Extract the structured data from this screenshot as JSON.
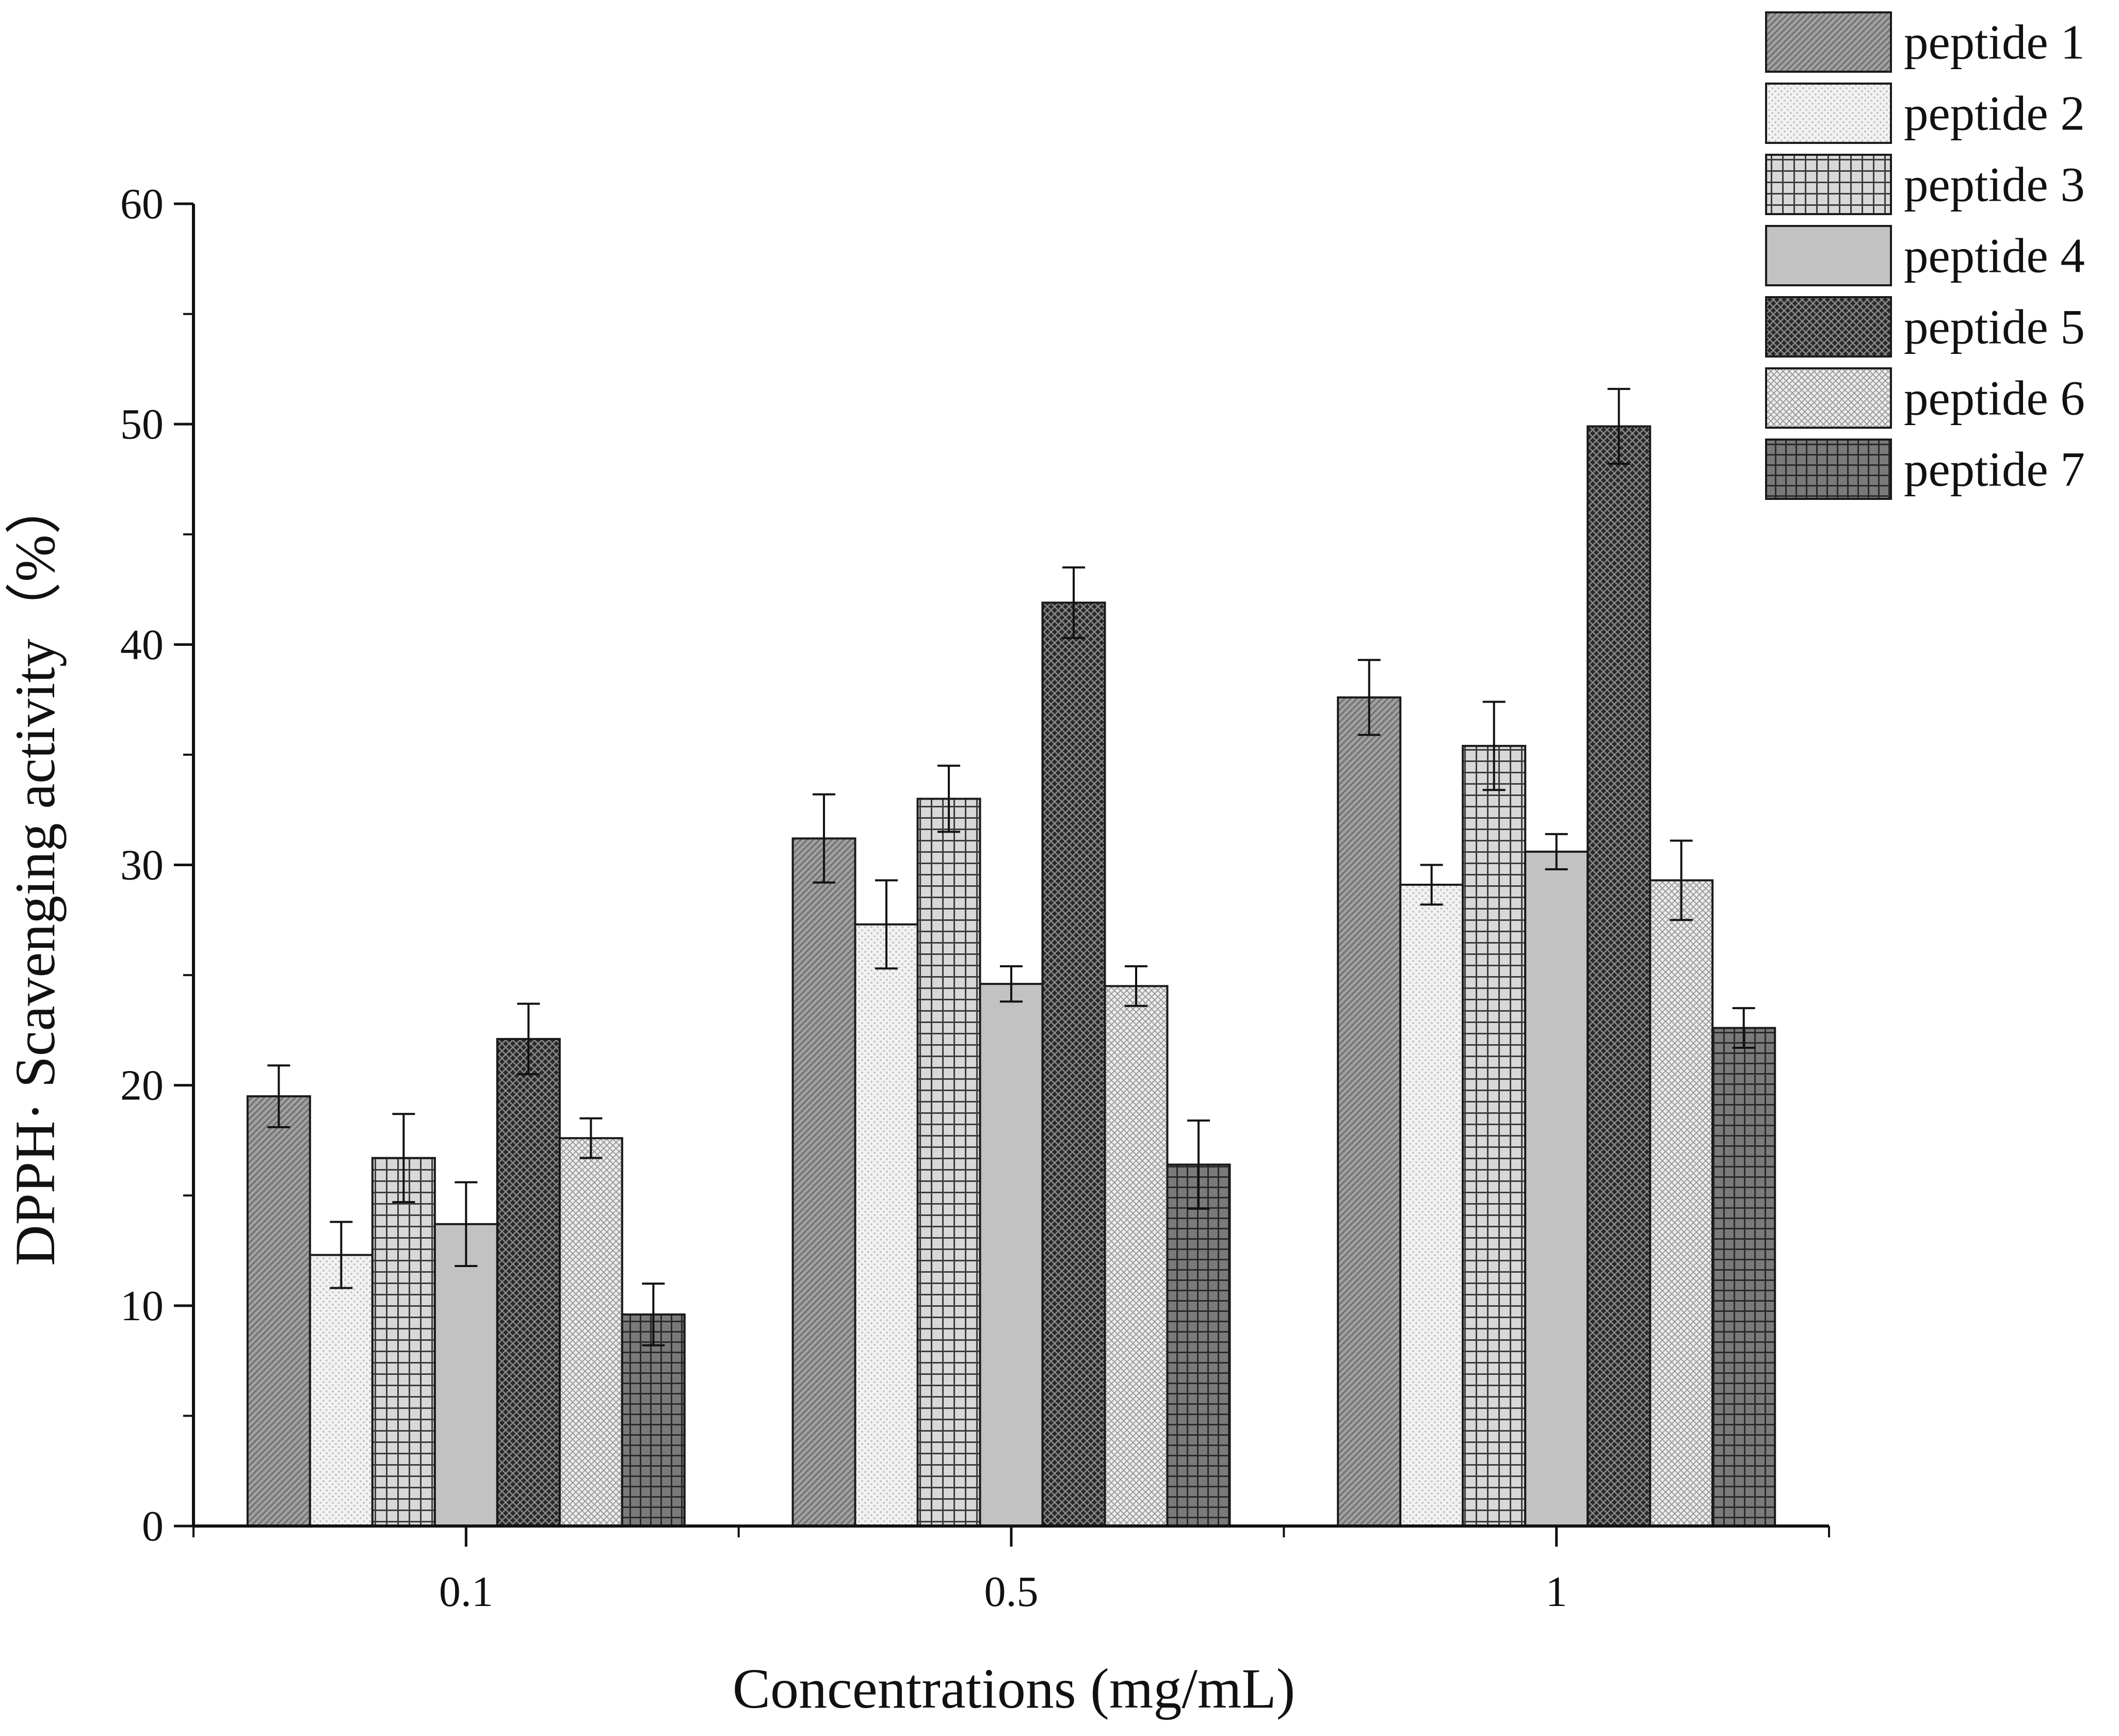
{
  "chart_data": {
    "type": "bar",
    "xlabel": "Concentrations (mg/mL)",
    "ylabel": "DPPH· Scavenging activity（%）",
    "ylim": [
      0,
      60
    ],
    "yticks": [
      0,
      10,
      20,
      30,
      40,
      50,
      60
    ],
    "categories": [
      "0.1",
      "0.5",
      "1"
    ],
    "grid": false,
    "legend_position": "top-right",
    "series": [
      {
        "name": "peptide 1",
        "values": [
          19.5,
          31.2,
          37.6
        ],
        "errors": [
          1.4,
          2.0,
          1.7
        ],
        "pattern": "fine-diagonal",
        "fill": "#9e9e9e"
      },
      {
        "name": "peptide 2",
        "values": [
          12.3,
          27.3,
          29.1
        ],
        "errors": [
          1.5,
          2.0,
          0.9
        ],
        "pattern": "light-dots",
        "fill": "#e8e8e8"
      },
      {
        "name": "peptide 3",
        "values": [
          16.7,
          33.0,
          35.4
        ],
        "errors": [
          2.0,
          1.5,
          2.0
        ],
        "pattern": "grid",
        "fill": "#d0d0d0"
      },
      {
        "name": "peptide 4",
        "values": [
          13.7,
          24.6,
          30.6
        ],
        "errors": [
          1.9,
          0.8,
          0.8
        ],
        "pattern": "solid",
        "fill": "#c2c2c2"
      },
      {
        "name": "peptide 5",
        "values": [
          22.1,
          41.9,
          49.9
        ],
        "errors": [
          1.6,
          1.6,
          1.7
        ],
        "pattern": "dark-crosshatch",
        "fill": "#3a3a3a"
      },
      {
        "name": "peptide 6",
        "values": [
          17.6,
          24.5,
          29.3
        ],
        "errors": [
          0.9,
          0.9,
          1.8
        ],
        "pattern": "light-crosshatch",
        "fill": "#dcdcdc"
      },
      {
        "name": "peptide 7",
        "values": [
          9.6,
          16.4,
          22.6
        ],
        "errors": [
          1.4,
          2.0,
          0.9
        ],
        "pattern": "dark-grid",
        "fill": "#6e6e6e"
      }
    ]
  }
}
